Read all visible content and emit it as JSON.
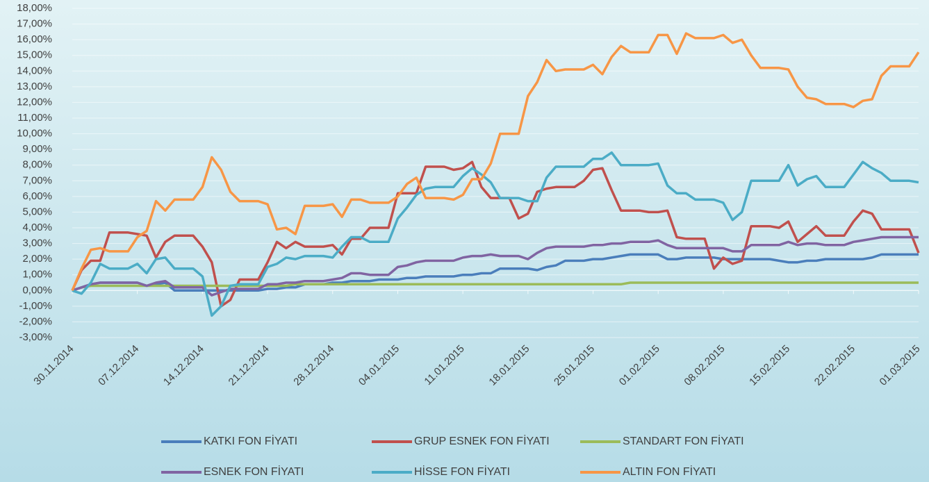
{
  "chart_data": {
    "type": "line",
    "categories": [
      "30.11.2014",
      null,
      null,
      null,
      null,
      null,
      null,
      "07.12.2014",
      null,
      null,
      null,
      null,
      null,
      null,
      "14.12.2014",
      null,
      null,
      null,
      null,
      null,
      null,
      "21.12.2014",
      null,
      null,
      null,
      null,
      null,
      null,
      "28.12.2014",
      null,
      null,
      null,
      null,
      null,
      null,
      "04.01.2015",
      null,
      null,
      null,
      null,
      null,
      null,
      "11.01.2015",
      null,
      null,
      null,
      null,
      null,
      null,
      "18.01.2015",
      null,
      null,
      null,
      null,
      null,
      null,
      "25.01.2015",
      null,
      null,
      null,
      null,
      null,
      null,
      "01.02.2015",
      null,
      null,
      null,
      null,
      null,
      null,
      "08.02.2015",
      null,
      null,
      null,
      null,
      null,
      null,
      "15.02.2015",
      null,
      null,
      null,
      null,
      null,
      null,
      "22.02.2015",
      null,
      null,
      null,
      null,
      null,
      null,
      "01.03.2015"
    ],
    "series": [
      {
        "name": "KATKI FON FİYATI",
        "color": "#4a7ebb",
        "values": [
          0,
          0.2,
          0.4,
          0.5,
          0.5,
          0.5,
          0.5,
          0.5,
          0.3,
          0.4,
          0.5,
          0.0,
          0.0,
          0.0,
          0.0,
          0.0,
          0.0,
          0.0,
          0.0,
          0.0,
          0.0,
          0.1,
          0.1,
          0.2,
          0.2,
          0.4,
          0.4,
          0.4,
          0.5,
          0.5,
          0.6,
          0.6,
          0.6,
          0.7,
          0.7,
          0.7,
          0.8,
          0.8,
          0.9,
          0.9,
          0.9,
          0.9,
          1.0,
          1.0,
          1.1,
          1.1,
          1.4,
          1.4,
          1.4,
          1.4,
          1.3,
          1.5,
          1.6,
          1.9,
          1.9,
          1.9,
          2.0,
          2.0,
          2.1,
          2.2,
          2.3,
          2.3,
          2.3,
          2.3,
          2.0,
          2.0,
          2.1,
          2.1,
          2.1,
          2.1,
          2.0,
          2.0,
          2.0,
          2.0,
          2.0,
          2.0,
          1.9,
          1.8,
          1.8,
          1.9,
          1.9,
          2.0,
          2.0,
          2.0,
          2.0,
          2.0,
          2.1,
          2.3,
          2.3,
          2.3,
          2.3,
          2.3
        ]
      },
      {
        "name": "GRUP ESNEK FON FİYATI",
        "color": "#c0504d",
        "values": [
          0,
          1.3,
          1.9,
          1.9,
          3.7,
          3.7,
          3.7,
          3.6,
          3.5,
          2.1,
          3.1,
          3.5,
          3.5,
          3.5,
          2.8,
          1.8,
          -1.0,
          -0.6,
          0.7,
          0.7,
          0.7,
          1.8,
          3.1,
          2.7,
          3.1,
          2.8,
          2.8,
          2.8,
          2.9,
          2.3,
          3.3,
          3.3,
          4.0,
          4.0,
          4.0,
          6.2,
          6.2,
          6.2,
          7.9,
          7.9,
          7.9,
          7.7,
          7.8,
          8.2,
          6.6,
          5.9,
          5.9,
          5.9,
          4.6,
          4.9,
          6.3,
          6.5,
          6.6,
          6.6,
          6.6,
          7.0,
          7.7,
          7.8,
          6.4,
          5.1,
          5.1,
          5.1,
          5.0,
          5.0,
          5.1,
          3.4,
          3.3,
          3.3,
          3.3,
          1.4,
          2.1,
          1.7,
          1.9,
          4.1,
          4.1,
          4.1,
          4.0,
          4.4,
          3.1,
          3.6,
          4.1,
          3.5,
          3.5,
          3.5,
          4.4,
          5.1,
          4.9,
          3.9,
          3.9,
          3.9,
          3.9,
          2.4
        ]
      },
      {
        "name": "STANDART FON FİYATI",
        "color": "#9bbb59",
        "values": [
          0,
          0.2,
          0.3,
          0.3,
          0.3,
          0.3,
          0.3,
          0.3,
          0.3,
          0.3,
          0.3,
          0.3,
          0.3,
          0.3,
          0.3,
          0.3,
          0.3,
          0.3,
          0.3,
          0.3,
          0.3,
          0.3,
          0.3,
          0.3,
          0.4,
          0.4,
          0.4,
          0.4,
          0.4,
          0.4,
          0.4,
          0.4,
          0.4,
          0.4,
          0.4,
          0.4,
          0.4,
          0.4,
          0.4,
          0.4,
          0.4,
          0.4,
          0.4,
          0.4,
          0.4,
          0.4,
          0.4,
          0.4,
          0.4,
          0.4,
          0.4,
          0.4,
          0.4,
          0.4,
          0.4,
          0.4,
          0.4,
          0.4,
          0.4,
          0.4,
          0.5,
          0.5,
          0.5,
          0.5,
          0.5,
          0.5,
          0.5,
          0.5,
          0.5,
          0.5,
          0.5,
          0.5,
          0.5,
          0.5,
          0.5,
          0.5,
          0.5,
          0.5,
          0.5,
          0.5,
          0.5,
          0.5,
          0.5,
          0.5,
          0.5,
          0.5,
          0.5,
          0.5,
          0.5,
          0.5,
          0.5,
          0.5
        ]
      },
      {
        "name": "ESNEK FON FİYATI",
        "color": "#8064a2",
        "values": [
          0,
          0.2,
          0.4,
          0.5,
          0.5,
          0.5,
          0.5,
          0.5,
          0.3,
          0.5,
          0.6,
          0.2,
          0.2,
          0.2,
          0.2,
          -0.3,
          -0.1,
          0.1,
          0.1,
          0.1,
          0.1,
          0.4,
          0.4,
          0.5,
          0.5,
          0.6,
          0.6,
          0.6,
          0.7,
          0.8,
          1.1,
          1.1,
          1.0,
          1.0,
          1.0,
          1.5,
          1.6,
          1.8,
          1.9,
          1.9,
          1.9,
          1.9,
          2.1,
          2.2,
          2.2,
          2.3,
          2.2,
          2.2,
          2.2,
          2.0,
          2.4,
          2.7,
          2.8,
          2.8,
          2.8,
          2.8,
          2.9,
          2.9,
          3.0,
          3.0,
          3.1,
          3.1,
          3.1,
          3.2,
          2.9,
          2.7,
          2.7,
          2.7,
          2.7,
          2.7,
          2.7,
          2.5,
          2.5,
          2.9,
          2.9,
          2.9,
          2.9,
          3.1,
          2.9,
          3.0,
          3.0,
          2.9,
          2.9,
          2.9,
          3.1,
          3.2,
          3.3,
          3.4,
          3.4,
          3.4,
          3.4,
          3.4
        ]
      },
      {
        "name": "HİSSE FON FİYATI",
        "color": "#4bacc6",
        "values": [
          0,
          -0.2,
          0.5,
          1.7,
          1.4,
          1.4,
          1.4,
          1.7,
          1.1,
          2.0,
          2.1,
          1.4,
          1.4,
          1.4,
          0.9,
          -1.6,
          -1.0,
          0.3,
          0.4,
          0.4,
          0.4,
          1.5,
          1.7,
          2.1,
          2.0,
          2.2,
          2.2,
          2.2,
          2.1,
          2.8,
          3.4,
          3.4,
          3.1,
          3.1,
          3.1,
          4.6,
          5.3,
          6.1,
          6.5,
          6.6,
          6.6,
          6.6,
          7.3,
          7.8,
          7.4,
          6.9,
          5.9,
          5.9,
          5.9,
          5.7,
          5.7,
          7.2,
          7.9,
          7.9,
          7.9,
          7.9,
          8.4,
          8.4,
          8.8,
          8.0,
          8.0,
          8.0,
          8.0,
          8.1,
          6.7,
          6.2,
          6.2,
          5.8,
          5.8,
          5.8,
          5.6,
          4.5,
          5.0,
          7.0,
          7.0,
          7.0,
          7.0,
          8.0,
          6.7,
          7.1,
          7.3,
          6.6,
          6.6,
          6.6,
          7.4,
          8.2,
          7.8,
          7.5,
          7.0,
          7.0,
          7.0,
          6.9
        ]
      },
      {
        "name": "ALTIN FON FİYATI",
        "color": "#f79646",
        "values": [
          0,
          1.4,
          2.6,
          2.7,
          2.5,
          2.5,
          2.5,
          3.4,
          3.8,
          5.7,
          5.1,
          5.8,
          5.8,
          5.8,
          6.6,
          8.5,
          7.7,
          6.3,
          5.7,
          5.7,
          5.7,
          5.5,
          3.9,
          4.0,
          3.6,
          5.4,
          5.4,
          5.4,
          5.5,
          4.7,
          5.8,
          5.8,
          5.6,
          5.6,
          5.6,
          6.0,
          6.8,
          7.2,
          5.9,
          5.9,
          5.9,
          5.8,
          6.1,
          7.1,
          7.1,
          8.1,
          10.0,
          10.0,
          10.0,
          12.4,
          13.3,
          14.7,
          14.0,
          14.1,
          14.1,
          14.1,
          14.4,
          13.8,
          14.9,
          15.6,
          15.2,
          15.2,
          15.2,
          16.3,
          16.3,
          15.1,
          16.4,
          16.1,
          16.1,
          16.1,
          16.3,
          15.8,
          16.0,
          15.0,
          14.2,
          14.2,
          14.2,
          14.1,
          13.0,
          12.3,
          12.2,
          11.9,
          11.9,
          11.9,
          11.7,
          12.1,
          12.2,
          13.7,
          14.3,
          14.3,
          14.3,
          15.2
        ]
      }
    ],
    "ylim": [
      -3,
      18
    ],
    "yticks": [
      {
        "value": -3,
        "label": "-3,00%"
      },
      {
        "value": -2,
        "label": "-2,00%"
      },
      {
        "value": -1,
        "label": "-1,00%"
      },
      {
        "value": 0,
        "label": "0,00%"
      },
      {
        "value": 1,
        "label": "1,00%"
      },
      {
        "value": 2,
        "label": "2,00%"
      },
      {
        "value": 3,
        "label": "3,00%"
      },
      {
        "value": 4,
        "label": "4,00%"
      },
      {
        "value": 5,
        "label": "5,00%"
      },
      {
        "value": 6,
        "label": "6,00%"
      },
      {
        "value": 7,
        "label": "7,00%"
      },
      {
        "value": 8,
        "label": "8,00%"
      },
      {
        "value": 9,
        "label": "9,00%"
      },
      {
        "value": 10,
        "label": "10,00%"
      },
      {
        "value": 11,
        "label": "11,00%"
      },
      {
        "value": 12,
        "label": "12,00%"
      },
      {
        "value": 13,
        "label": "13,00%"
      },
      {
        "value": 14,
        "label": "14,00%"
      },
      {
        "value": 15,
        "label": "15,00%"
      },
      {
        "value": 16,
        "label": "16,00%"
      },
      {
        "value": 17,
        "label": "17,00%"
      },
      {
        "value": 18,
        "label": "18,00%"
      }
    ],
    "grid": true,
    "legend": "bottom"
  }
}
